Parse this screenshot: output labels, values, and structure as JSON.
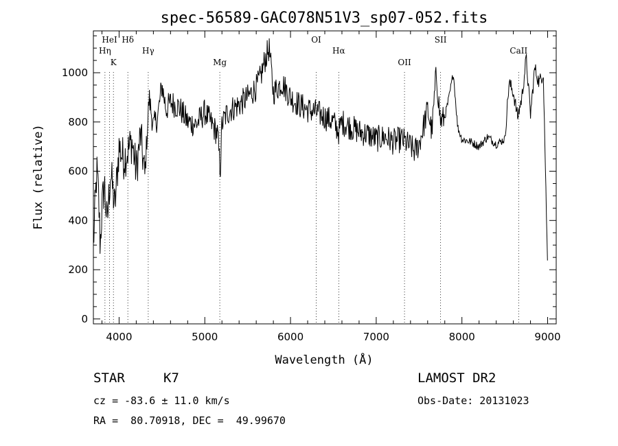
{
  "chart_data": {
    "type": "line",
    "title": "spec-56589-GAC078N51V3_sp07-052.fits",
    "xlabel": "Wavelength (Å)",
    "ylabel": "Flux (relative)",
    "xlim": [
      3700,
      9100
    ],
    "ylim": [
      -20,
      1170
    ],
    "xticks": [
      4000,
      5000,
      6000,
      7000,
      8000,
      9000
    ],
    "xtick_labels": [
      "4000",
      "5000",
      "6000",
      "7000",
      "8000",
      "9000"
    ],
    "yticks": [
      0,
      200,
      400,
      600,
      800,
      1000
    ],
    "ytick_labels": [
      "0",
      "200",
      "400",
      "600",
      "800",
      "1000"
    ],
    "grid": false,
    "series": [
      {
        "x": [
          3700,
          3720,
          3740,
          3760,
          3780,
          3800,
          3830,
          3860,
          3900,
          3950,
          4000,
          4050,
          4100,
          4150,
          4200,
          4250,
          4300,
          4350,
          4400,
          4450,
          4500,
          4550,
          4600,
          4700,
          4800,
          4900,
          5000,
          5100,
          5150,
          5180,
          5200,
          5250,
          5300,
          5400,
          5500,
          5600,
          5650,
          5700,
          5750,
          5800,
          5900,
          6000,
          6100,
          6200,
          6300,
          6400,
          6500,
          6563,
          6600,
          6700,
          6800,
          6900,
          7000,
          7100,
          7200,
          7300,
          7400,
          7450,
          7500,
          7550,
          7600,
          7650,
          7700,
          7750,
          7800,
          7850,
          7900,
          7950,
          8000,
          8100,
          8200,
          8300,
          8400,
          8500,
          8550,
          8600,
          8650,
          8700,
          8750,
          8800,
          8850,
          8900,
          8950,
          9000
        ],
        "y": [
          300,
          450,
          600,
          500,
          300,
          450,
          550,
          380,
          600,
          450,
          700,
          650,
          680,
          720,
          600,
          750,
          580,
          900,
          780,
          820,
          950,
          850,
          880,
          860,
          800,
          790,
          840,
          780,
          750,
          600,
          790,
          830,
          850,
          870,
          900,
          940,
          980,
          1050,
          1100,
          920,
          960,
          900,
          870,
          850,
          840,
          820,
          800,
          760,
          800,
          780,
          760,
          750,
          730,
          740,
          720,
          730,
          700,
          680,
          710,
          780,
          850,
          760,
          1000,
          800,
          820,
          900,
          1000,
          780,
          730,
          720,
          700,
          740,
          710,
          730,
          960,
          920,
          820,
          900,
          1060,
          830,
          1020,
          960,
          1000,
          200
        ]
      }
    ],
    "line_labels": [
      {
        "label": "HeI",
        "x": 3889
      },
      {
        "label": "Hη",
        "x": 3835
      },
      {
        "label": "K",
        "x": 3934
      },
      {
        "label": "Hδ",
        "x": 4102
      },
      {
        "label": "Hγ",
        "x": 4340
      },
      {
        "label": "Mg",
        "x": 5175
      },
      {
        "label": "OI",
        "x": 6300
      },
      {
        "label": "Hα",
        "x": 6563
      },
      {
        "label": "OII",
        "x": 7330
      },
      {
        "label": "SII",
        "x": 7751
      },
      {
        "label": "CaII",
        "x": 8662
      }
    ]
  },
  "info": {
    "object_type": "STAR",
    "subclass": "K7",
    "survey": "LAMOST DR2",
    "cz": "cz = -83.6 ± 11.0 km/s",
    "obs_date": "Obs-Date: 20131023",
    "coords": "RA =  80.70918, DEC =  49.99670"
  }
}
